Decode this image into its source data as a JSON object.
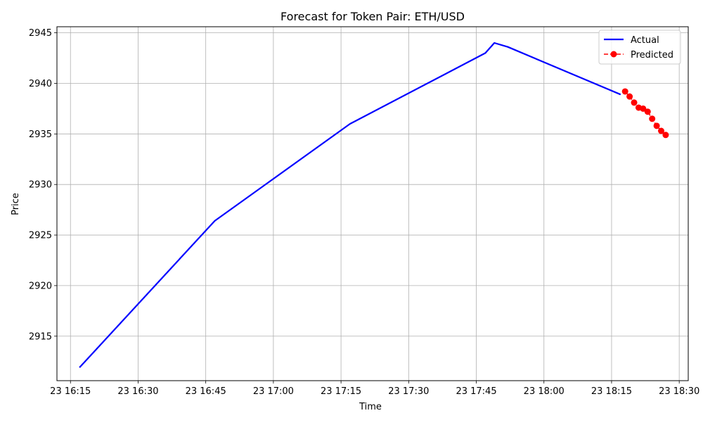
{
  "chart_data": {
    "type": "line",
    "title": "Forecast for Token Pair: ETH/USD",
    "xlabel": "Time",
    "ylabel": "Price",
    "x_ticks": [
      "23 16:15",
      "23 16:30",
      "23 16:45",
      "23 17:00",
      "23 17:15",
      "23 17:30",
      "23 17:45",
      "23 18:00",
      "23 18:15",
      "23 18:30"
    ],
    "y_ticks": [
      "2915",
      "2920",
      "2925",
      "2930",
      "2935",
      "2940",
      "2945"
    ],
    "xlim": [
      "16:12",
      "18:32"
    ],
    "ylim": [
      2910.6,
      2945.6
    ],
    "grid": true,
    "legend_position": "top-right",
    "series": [
      {
        "name": "Actual",
        "color": "#0000ff",
        "style": "solid line",
        "points": [
          {
            "x": "16:17",
            "y": 2911.9
          },
          {
            "x": "16:47",
            "y": 2926.4
          },
          {
            "x": "17:17",
            "y": 2936.0
          },
          {
            "x": "17:47",
            "y": 2943.0
          },
          {
            "x": "17:49",
            "y": 2944.0
          },
          {
            "x": "17:52",
            "y": 2943.6
          },
          {
            "x": "18:17",
            "y": 2938.9
          }
        ]
      },
      {
        "name": "Predicted",
        "color": "#ff0000",
        "style": "dashed line with circle markers",
        "points": [
          {
            "x": "18:18",
            "y": 2939.2
          },
          {
            "x": "18:19",
            "y": 2938.7
          },
          {
            "x": "18:20",
            "y": 2938.1
          },
          {
            "x": "18:21",
            "y": 2937.6
          },
          {
            "x": "18:22",
            "y": 2937.5
          },
          {
            "x": "18:23",
            "y": 2937.2
          },
          {
            "x": "18:24",
            "y": 2936.5
          },
          {
            "x": "18:25",
            "y": 2935.8
          },
          {
            "x": "18:26",
            "y": 2935.3
          },
          {
            "x": "18:27",
            "y": 2934.9
          }
        ]
      }
    ]
  }
}
